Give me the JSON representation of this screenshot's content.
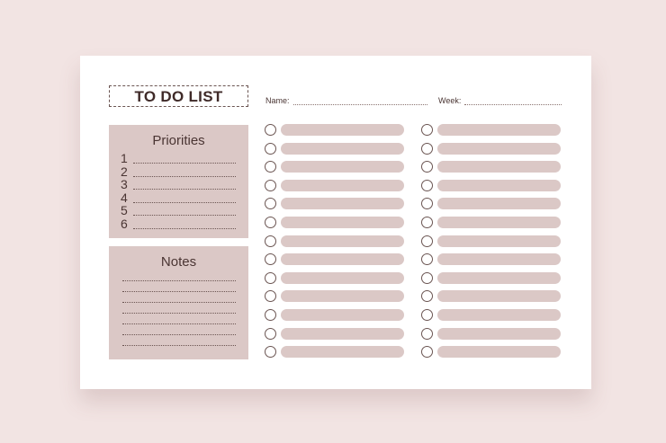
{
  "title": "TO DO LIST",
  "fields": {
    "name_label": "Name:",
    "week_label": "Week:"
  },
  "priorities": {
    "heading": "Priorities",
    "items": [
      "1",
      "2",
      "3",
      "4",
      "5",
      "6"
    ]
  },
  "notes": {
    "heading": "Notes",
    "line_count": 7
  },
  "tasks": {
    "columns": 2,
    "rows_per_column": 13
  },
  "colors": {
    "background": "#f2e4e3",
    "panel": "#dbc8c6",
    "text": "#4a3533"
  }
}
